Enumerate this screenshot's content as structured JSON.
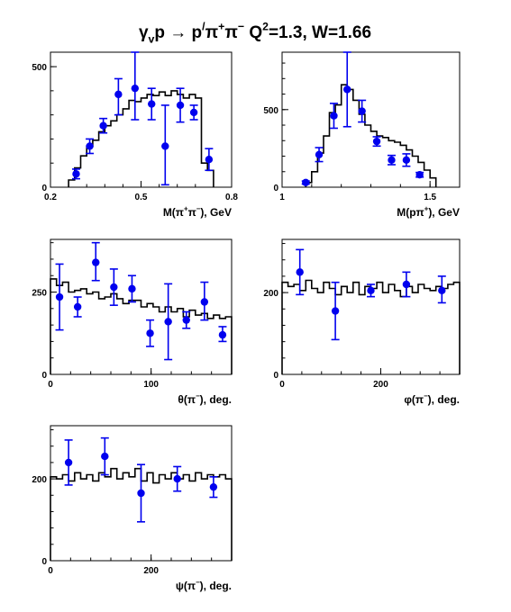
{
  "title": {
    "parts": [
      {
        "t": "γ"
      },
      {
        "t": "v",
        "sub": true
      },
      {
        "t": "p → p"
      },
      {
        "t": "/",
        "sup": true
      },
      {
        "t": "π"
      },
      {
        "t": "+",
        "sup": true
      },
      {
        "t": "π"
      },
      {
        "t": "−",
        "sup": true
      },
      {
        "t": "   Q"
      },
      {
        "t": "2",
        "sup": true
      },
      {
        "t": "=1.3, W=1.66"
      }
    ]
  },
  "colors": {
    "data": "#0000ee",
    "model": "#000000"
  },
  "chart_data": [
    {
      "type": "scatter",
      "id": "m-pipi",
      "xlabel_parts": [
        {
          "t": "M(π"
        },
        {
          "t": "+",
          "sup": true
        },
        {
          "t": "π"
        },
        {
          "t": "−",
          "sup": true
        },
        {
          "t": "), GeV"
        }
      ],
      "xlim": [
        0.2,
        0.8
      ],
      "ylim": [
        0,
        560
      ],
      "xticks": [
        0.2,
        0.5,
        0.8
      ],
      "xtick_labels": [
        "0.2",
        "0.5",
        "0.8"
      ],
      "yticks": [
        0,
        500
      ],
      "ytick_labels": [
        "0",
        "500"
      ],
      "points": [
        {
          "x": 0.285,
          "y": 55,
          "lo": 35,
          "hi": 75
        },
        {
          "x": 0.33,
          "y": 170,
          "lo": 140,
          "hi": 200
        },
        {
          "x": 0.375,
          "y": 255,
          "lo": 225,
          "hi": 285
        },
        {
          "x": 0.425,
          "y": 385,
          "lo": 300,
          "hi": 450
        },
        {
          "x": 0.48,
          "y": 410,
          "lo": 280,
          "hi": 560
        },
        {
          "x": 0.535,
          "y": 345,
          "lo": 280,
          "hi": 410
        },
        {
          "x": 0.58,
          "y": 170,
          "lo": 10,
          "hi": 340
        },
        {
          "x": 0.63,
          "y": 340,
          "lo": 270,
          "hi": 410
        },
        {
          "x": 0.675,
          "y": 310,
          "lo": 280,
          "hi": 340
        },
        {
          "x": 0.725,
          "y": 115,
          "lo": 70,
          "hi": 160
        }
      ],
      "model": {
        "edges": [
          0.26,
          0.28,
          0.3,
          0.32,
          0.34,
          0.36,
          0.38,
          0.4,
          0.42,
          0.44,
          0.46,
          0.48,
          0.5,
          0.52,
          0.54,
          0.56,
          0.58,
          0.6,
          0.62,
          0.64,
          0.66,
          0.68,
          0.7,
          0.72,
          0.74
        ],
        "values": [
          30,
          80,
          130,
          170,
          195,
          230,
          255,
          275,
          300,
          325,
          360,
          355,
          370,
          385,
          380,
          395,
          380,
          400,
          385,
          370,
          385,
          370,
          100,
          70
        ]
      }
    },
    {
      "type": "scatter",
      "id": "m-ppi",
      "xlabel_parts": [
        {
          "t": "M(pπ"
        },
        {
          "t": "+",
          "sup": true
        },
        {
          "t": "), GeV"
        }
      ],
      "xlim": [
        1.0,
        1.6
      ],
      "ylim": [
        0,
        870
      ],
      "xticks": [
        1.0,
        1.5
      ],
      "xtick_labels": [
        "1",
        "1.5"
      ],
      "yticks": [
        0,
        500
      ],
      "ytick_labels": [
        "0",
        "500"
      ],
      "points": [
        {
          "x": 1.08,
          "y": 30,
          "lo": 20,
          "hi": 40
        },
        {
          "x": 1.125,
          "y": 210,
          "lo": 165,
          "hi": 255
        },
        {
          "x": 1.175,
          "y": 460,
          "lo": 380,
          "hi": 540
        },
        {
          "x": 1.22,
          "y": 630,
          "lo": 390,
          "hi": 870
        },
        {
          "x": 1.27,
          "y": 490,
          "lo": 420,
          "hi": 560
        },
        {
          "x": 1.32,
          "y": 295,
          "lo": 265,
          "hi": 325
        },
        {
          "x": 1.37,
          "y": 175,
          "lo": 145,
          "hi": 205
        },
        {
          "x": 1.42,
          "y": 175,
          "lo": 135,
          "hi": 215
        },
        {
          "x": 1.465,
          "y": 80,
          "lo": 65,
          "hi": 95
        }
      ],
      "model": {
        "edges": [
          1.08,
          1.1,
          1.12,
          1.14,
          1.16,
          1.18,
          1.2,
          1.22,
          1.24,
          1.26,
          1.28,
          1.3,
          1.32,
          1.34,
          1.36,
          1.38,
          1.4,
          1.42,
          1.44,
          1.46,
          1.48,
          1.5,
          1.52
        ],
        "values": [
          30,
          100,
          220,
          330,
          480,
          530,
          660,
          630,
          560,
          470,
          400,
          360,
          330,
          320,
          300,
          290,
          270,
          240,
          200,
          160,
          110,
          60
        ]
      }
    },
    {
      "type": "scatter",
      "id": "theta",
      "xlabel_parts": [
        {
          "t": "θ(π"
        },
        {
          "t": "−",
          "sup": true
        },
        {
          "t": "), deg."
        }
      ],
      "xlim": [
        0,
        180
      ],
      "ylim": [
        0,
        410
      ],
      "xticks": [
        0,
        100
      ],
      "xtick_labels": [
        "0",
        "100"
      ],
      "yticks": [
        0,
        250
      ],
      "ytick_labels": [
        "0",
        "250"
      ],
      "points": [
        {
          "x": 9,
          "y": 235,
          "lo": 135,
          "hi": 335
        },
        {
          "x": 27,
          "y": 205,
          "lo": 175,
          "hi": 235
        },
        {
          "x": 45,
          "y": 340,
          "lo": 285,
          "hi": 400
        },
        {
          "x": 63,
          "y": 265,
          "lo": 210,
          "hi": 320
        },
        {
          "x": 81,
          "y": 260,
          "lo": 220,
          "hi": 300
        },
        {
          "x": 99,
          "y": 125,
          "lo": 85,
          "hi": 165
        },
        {
          "x": 117,
          "y": 160,
          "lo": 45,
          "hi": 275
        },
        {
          "x": 135,
          "y": 165,
          "lo": 140,
          "hi": 190
        },
        {
          "x": 153,
          "y": 220,
          "lo": 165,
          "hi": 280
        },
        {
          "x": 171,
          "y": 120,
          "lo": 100,
          "hi": 145
        }
      ],
      "model": {
        "edges": [
          0,
          6,
          12,
          18,
          24,
          30,
          36,
          42,
          48,
          54,
          60,
          66,
          72,
          78,
          84,
          90,
          96,
          102,
          108,
          114,
          120,
          126,
          132,
          138,
          144,
          150,
          156,
          162,
          168,
          174,
          180
        ],
        "values": [
          290,
          270,
          280,
          250,
          255,
          260,
          245,
          250,
          230,
          235,
          245,
          230,
          215,
          225,
          225,
          205,
          215,
          205,
          190,
          205,
          190,
          200,
          175,
          195,
          180,
          185,
          170,
          180,
          170,
          175
        ]
      }
    },
    {
      "type": "scatter",
      "id": "phi",
      "xlabel_parts": [
        {
          "t": "φ(π"
        },
        {
          "t": "−",
          "sup": true
        },
        {
          "t": "), deg."
        }
      ],
      "xlim": [
        0,
        360
      ],
      "ylim": [
        0,
        330
      ],
      "xticks": [
        0,
        200
      ],
      "xtick_labels": [
        "0",
        "200"
      ],
      "yticks": [
        0,
        200
      ],
      "ytick_labels": [
        "0",
        "200"
      ],
      "points": [
        {
          "x": 36,
          "y": 250,
          "lo": 195,
          "hi": 305
        },
        {
          "x": 108,
          "y": 155,
          "lo": 85,
          "hi": 225
        },
        {
          "x": 180,
          "y": 205,
          "lo": 190,
          "hi": 220
        },
        {
          "x": 252,
          "y": 220,
          "lo": 190,
          "hi": 250
        },
        {
          "x": 324,
          "y": 205,
          "lo": 175,
          "hi": 240
        }
      ],
      "model": {
        "edges": [
          0,
          12,
          24,
          36,
          48,
          60,
          72,
          84,
          96,
          108,
          120,
          132,
          144,
          156,
          168,
          180,
          192,
          204,
          216,
          228,
          240,
          252,
          264,
          276,
          288,
          300,
          312,
          324,
          336,
          348,
          360
        ],
        "values": [
          225,
          215,
          220,
          205,
          230,
          210,
          200,
          225,
          210,
          195,
          215,
          200,
          225,
          195,
          215,
          210,
          225,
          200,
          220,
          205,
          190,
          215,
          200,
          220,
          210,
          205,
          215,
          210,
          220,
          225
        ]
      }
    },
    {
      "type": "scatter",
      "id": "psi",
      "xlabel_parts": [
        {
          "t": "ψ(π"
        },
        {
          "t": "−",
          "sup": true
        },
        {
          "t": "), deg."
        }
      ],
      "xlim": [
        0,
        360
      ],
      "ylim": [
        0,
        330
      ],
      "xticks": [
        0,
        200
      ],
      "xtick_labels": [
        "0",
        "200"
      ],
      "yticks": [
        0,
        200
      ],
      "ytick_labels": [
        "0",
        "200"
      ],
      "points": [
        {
          "x": 36,
          "y": 240,
          "lo": 185,
          "hi": 295
        },
        {
          "x": 108,
          "y": 255,
          "lo": 210,
          "hi": 300
        },
        {
          "x": 180,
          "y": 165,
          "lo": 95,
          "hi": 235
        },
        {
          "x": 252,
          "y": 200,
          "lo": 170,
          "hi": 230
        },
        {
          "x": 324,
          "y": 180,
          "lo": 155,
          "hi": 205
        }
      ],
      "model": {
        "edges": [
          0,
          12,
          24,
          36,
          48,
          60,
          72,
          84,
          96,
          108,
          120,
          132,
          144,
          156,
          168,
          180,
          192,
          204,
          216,
          228,
          240,
          252,
          264,
          276,
          288,
          300,
          312,
          324,
          336,
          348,
          360
        ],
        "values": [
          205,
          200,
          210,
          195,
          215,
          200,
          210,
          195,
          215,
          205,
          225,
          200,
          215,
          205,
          225,
          195,
          215,
          190,
          210,
          200,
          215,
          200,
          210,
          195,
          215,
          200,
          210,
          205,
          210,
          200
        ]
      }
    }
  ]
}
